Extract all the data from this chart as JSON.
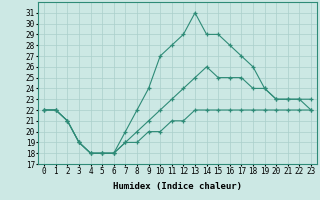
{
  "xlabel": "Humidex (Indice chaleur)",
  "hours": [
    0,
    1,
    2,
    3,
    4,
    5,
    6,
    7,
    8,
    9,
    10,
    11,
    12,
    13,
    14,
    15,
    16,
    17,
    18,
    19,
    20,
    21,
    22,
    23
  ],
  "line1": [
    22,
    22,
    21,
    19,
    18,
    18,
    18,
    20,
    22,
    24,
    27,
    28,
    29,
    31,
    29,
    29,
    28,
    27,
    26,
    24,
    23,
    23,
    23,
    23
  ],
  "line2": [
    22,
    22,
    21,
    19,
    18,
    18,
    18,
    19,
    20,
    21,
    22,
    23,
    24,
    25,
    26,
    25,
    25,
    25,
    24,
    24,
    23,
    23,
    23,
    22
  ],
  "line3": [
    22,
    22,
    21,
    19,
    18,
    18,
    18,
    19,
    19,
    20,
    20,
    21,
    21,
    22,
    22,
    22,
    22,
    22,
    22,
    22,
    22,
    22,
    22,
    22
  ],
  "line_color": "#2e8b77",
  "bg_color": "#cce8e4",
  "grid_color": "#aacfcb",
  "ylim": [
    17,
    32
  ],
  "yticks": [
    17,
    18,
    19,
    20,
    21,
    22,
    23,
    24,
    25,
    26,
    27,
    28,
    29,
    30,
    31
  ],
  "label_fontsize": 6.5,
  "tick_fontsize": 5.5
}
